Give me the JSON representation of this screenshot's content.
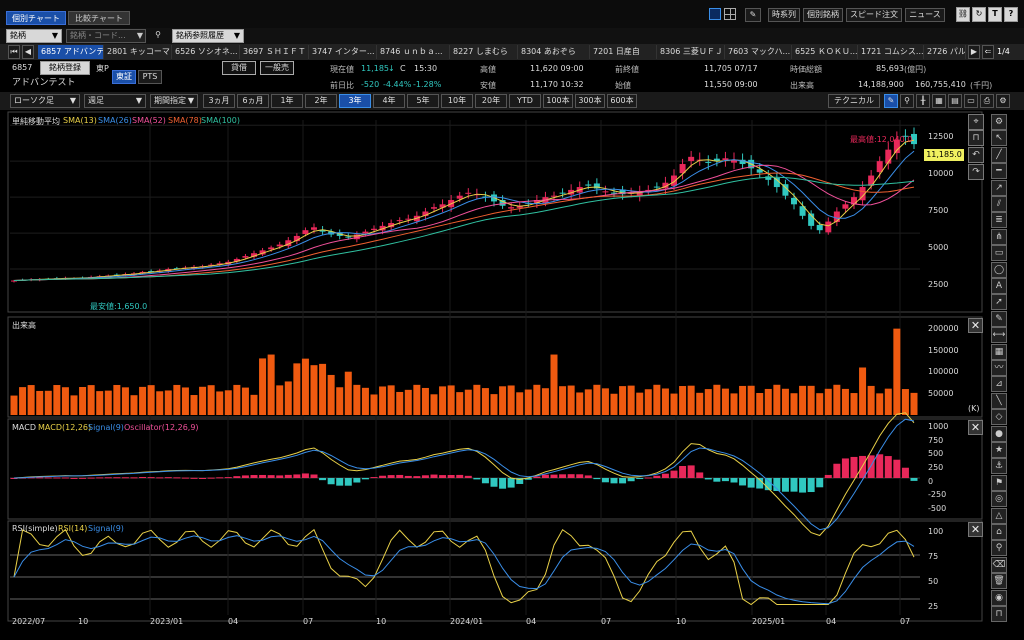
{
  "tabs": [
    "個別チャート",
    "比較チャート"
  ],
  "header_right": {
    "time_series": "時系列",
    "individual": "個別銘柄",
    "speed_order": "スピード注文",
    "news": "ニュース"
  },
  "symbol_bar": {
    "dropdown": "銘柄",
    "search_placeholder": "銘柄・コード...",
    "history": "銘柄参照履歴"
  },
  "stock_tabs": [
    "6857 アドバンテ...",
    "2801 キッコーマン",
    "6526 ソシオネ...",
    "3697 ＳＨＩＦＴ",
    "3747 インター...",
    "8746 ｕｎｂａ...",
    "8227 しまむら",
    "8304 あおぞら",
    "7201 日産自",
    "8306 三菱ＵＦＪ",
    "7603 マックハ...",
    "6525 ＫＯＫＵ...",
    "1721 コムシス...",
    "2726 パル"
  ],
  "page_indicator": "1/4",
  "stock": {
    "code": "6857",
    "name": "アドバンテスト",
    "market": "東P",
    "register": "銘柄登録",
    "exchange_tse": "東証",
    "exchange_pts": "PTS",
    "credit_loan": "貸借",
    "credit_general": "一般売",
    "current_label": "現在値",
    "current_value": "11,185",
    "current_arrow": "↓",
    "current_flag": "C",
    "current_time": "15:30",
    "change_label": "前日比",
    "change_value": "-520",
    "change_pct": "-4.44%",
    "change_extra": "-1.28%",
    "high_label": "高値",
    "high_value": "11,620 09:00",
    "low_label": "安値",
    "low_value": "11,170 10:32",
    "prev_close_label": "前終値",
    "prev_close_value": "11,705 07/17",
    "open_label": "始値",
    "open_value": "11,550 09:00",
    "market_cap_label": "時価総額",
    "market_cap_value": "85,693",
    "market_cap_unit": "(億円)",
    "volume_label": "出来高",
    "volume_value": "14,188,900",
    "turnover_value": "160,755,410",
    "turnover_unit": "(千円)"
  },
  "toolbar": {
    "chart_type": "ローソク足",
    "period_type": "週足",
    "range_select": "期間指定",
    "ranges": [
      "3ヵ月",
      "6ヵ月",
      "1年",
      "2年",
      "3年",
      "4年",
      "5年",
      "10年",
      "20年",
      "YTD",
      "100本",
      "300本",
      "600本"
    ],
    "active_range": "3年",
    "technical": "テクニカル"
  },
  "price_panel": {
    "indicator_label": "単純移動平均",
    "sma": [
      {
        "name": "SMA(13)",
        "color": "#e8d048"
      },
      {
        "name": "SMA(26)",
        "color": "#3a8ee8"
      },
      {
        "name": "SMA(52)",
        "color": "#f0509a"
      },
      {
        "name": "SMA(78)",
        "color": "#f06030"
      },
      {
        "name": "SMA(100)",
        "color": "#30c0a0"
      }
    ],
    "yticks": [
      "12500",
      "10000",
      "7500",
      "5000",
      "2500"
    ],
    "high_annotation": "最高値:12,040.0",
    "low_annotation": "最安値:1,650.0",
    "current_badge": "11,185.0"
  },
  "volume_panel": {
    "label": "出来高",
    "yticks": [
      "200000",
      "150000",
      "100000",
      "50000"
    ],
    "unit": "(K)"
  },
  "macd_panel": {
    "label": "MACD",
    "macd": "MACD(12,26)",
    "signal": "Signal(9)",
    "oscillator": "Oscillator(12,26,9)",
    "yticks": [
      "1000",
      "750",
      "500",
      "250",
      "0",
      "-250",
      "-500"
    ]
  },
  "rsi_panel": {
    "label": "RSI(simple)",
    "rsi": "RSI(14)",
    "signal": "Signal(9)",
    "yticks": [
      "100",
      "75",
      "50",
      "25"
    ]
  },
  "xaxis": [
    "2022/07",
    "10",
    "2023/01",
    "04",
    "07",
    "10",
    "2024/01",
    "04",
    "07",
    "10",
    "2025/01",
    "04",
    "07"
  ],
  "colors": {
    "up": "#e8285a",
    "down": "#30c8c0",
    "volume": "#f05a10",
    "macd_line": "#e8d048",
    "signal_line": "#3a8ee8",
    "accent": "#1a4fa8"
  },
  "chart_data": {
    "type": "candlestick-weekly",
    "price_range": [
      0,
      13000
    ],
    "closes_approx": [
      1700,
      1750,
      1780,
      1800,
      1820,
      1850,
      1880,
      1860,
      1900,
      1950,
      2000,
      2050,
      2100,
      2150,
      2200,
      2300,
      2350,
      2400,
      2500,
      2550,
      2600,
      2650,
      2700,
      2800,
      2900,
      3000,
      3200,
      3400,
      3600,
      3800,
      4000,
      4200,
      4500,
      4800,
      5200,
      5400,
      5100,
      4900,
      4800,
      4700,
      4900,
      5100,
      5300,
      5500,
      5700,
      5900,
      6000,
      6200,
      6500,
      6800,
      7000,
      7300,
      7600,
      7800,
      7700,
      7500,
      7200,
      6900,
      6800,
      6900,
      7100,
      7300,
      7500,
      7600,
      7800,
      8000,
      8200,
      8300,
      8100,
      7900,
      7800,
      7700,
      7800,
      7900,
      8000,
      8200,
      8500,
      9000,
      9800,
      10300,
      10100,
      9900,
      10000,
      10200,
      10100,
      9800,
      9500,
      9200,
      8700,
      8200,
      7600,
      7000,
      6200,
      5500,
      5200,
      5800,
      6500,
      7000,
      7500,
      8200,
      9000,
      10000,
      10800,
      11500,
      11700,
      11185
    ],
    "volume_range": [
      0,
      220000
    ],
    "macd_range": [
      -600,
      1050
    ],
    "rsi_range": [
      20,
      100
    ]
  }
}
